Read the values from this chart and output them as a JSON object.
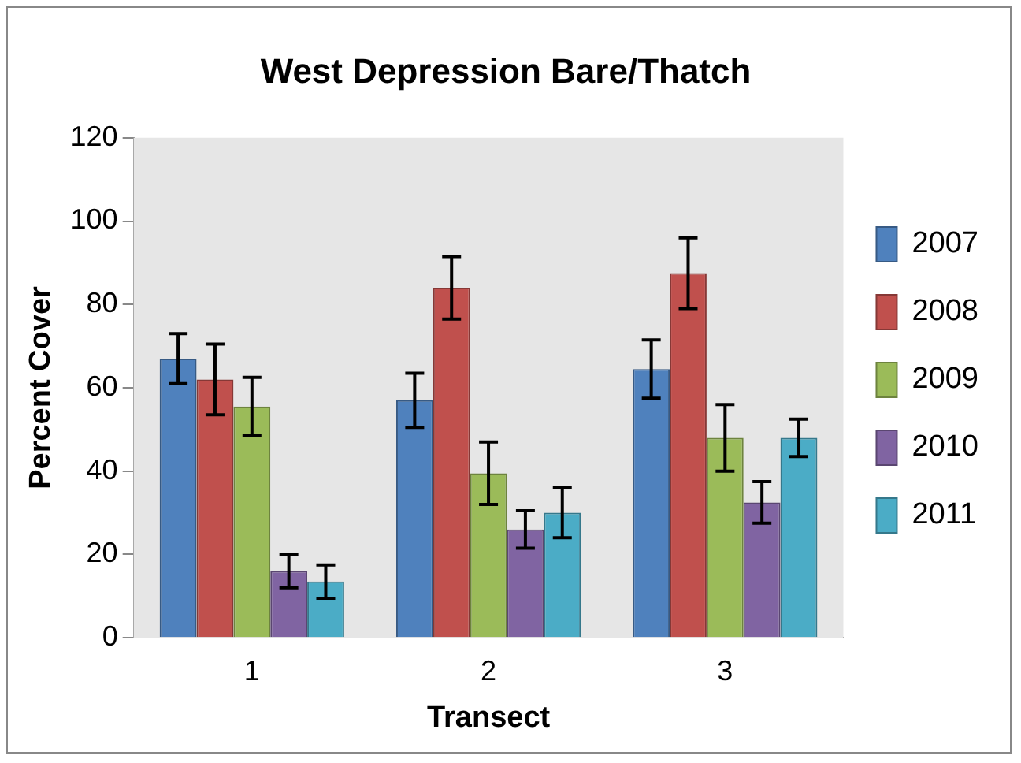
{
  "chart_data": {
    "type": "bar",
    "title": "West Depression Bare/Thatch",
    "xlabel": "Transect",
    "ylabel": "Percent Cover",
    "categories": [
      "1",
      "2",
      "3"
    ],
    "series": [
      {
        "name": "2007",
        "color": "#4f81bd",
        "values": [
          67,
          57,
          64.5
        ],
        "errors": [
          6,
          6.5,
          7
        ]
      },
      {
        "name": "2008",
        "color": "#c0504d",
        "values": [
          62,
          84,
          87.5
        ],
        "errors": [
          8.5,
          7.5,
          8.5
        ]
      },
      {
        "name": "2009",
        "color": "#9bbb59",
        "values": [
          55.5,
          39.5,
          48
        ],
        "errors": [
          7,
          7.5,
          8
        ]
      },
      {
        "name": "2010",
        "color": "#8064a2",
        "values": [
          16,
          26,
          32.5
        ],
        "errors": [
          4,
          4.5,
          5
        ]
      },
      {
        "name": "2011",
        "color": "#4bacc6",
        "values": [
          13.5,
          30,
          48
        ],
        "errors": [
          4,
          6,
          4.5
        ]
      }
    ],
    "ylim": [
      0,
      120
    ],
    "yticks": [
      0,
      20,
      40,
      60,
      80,
      100,
      120
    ],
    "grid": false,
    "legend": "right"
  }
}
